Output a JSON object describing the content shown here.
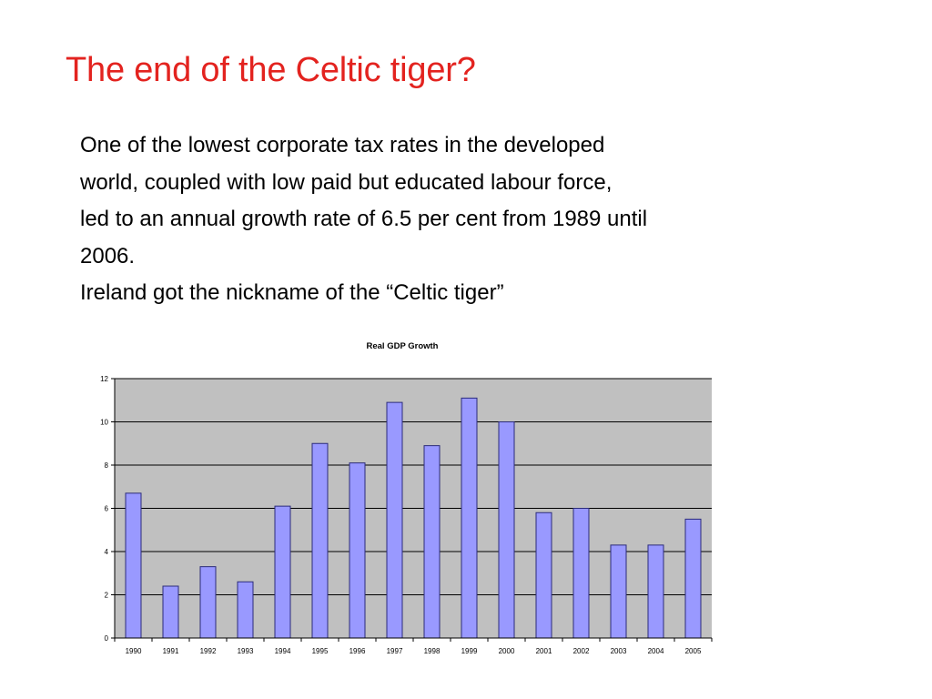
{
  "slide": {
    "title": "The end of the Celtic tiger?",
    "title_color": "#e3231f",
    "text_color": "#000000",
    "paragraph_lines": [
      "One of the lowest corporate tax rates in the developed",
      "world, coupled with low paid but educated labour force,",
      "led to an annual growth rate of 6.5 per cent from 1989 until",
      "2006.",
      "Ireland got the nickname of the “Celtic tiger”"
    ]
  },
  "chart_data": {
    "type": "bar",
    "title": "Real GDP Growth",
    "xlabel": "",
    "ylabel": "",
    "categories": [
      "1990",
      "1991",
      "1992",
      "1993",
      "1994",
      "1995",
      "1996",
      "1997",
      "1998",
      "1999",
      "2000",
      "2001",
      "2002",
      "2003",
      "2004",
      "2005"
    ],
    "series": [
      {
        "values": [
          6.7,
          2.4,
          3.3,
          2.6,
          6.1,
          9.0,
          8.1,
          10.9,
          8.9,
          11.1,
          10.0,
          5.8,
          6.0,
          4.3,
          4.3,
          5.5
        ]
      }
    ],
    "ylim": [
      0,
      12
    ],
    "yticks": [
      "0",
      "2",
      "4",
      "6",
      "8",
      "10",
      "12"
    ],
    "grid": true,
    "legend": "none",
    "colors": {
      "bar_fill": "#9999ff",
      "bar_stroke": "#2b2b7a",
      "plot_background": "#c0c0c0",
      "gridline": "#000000"
    }
  }
}
